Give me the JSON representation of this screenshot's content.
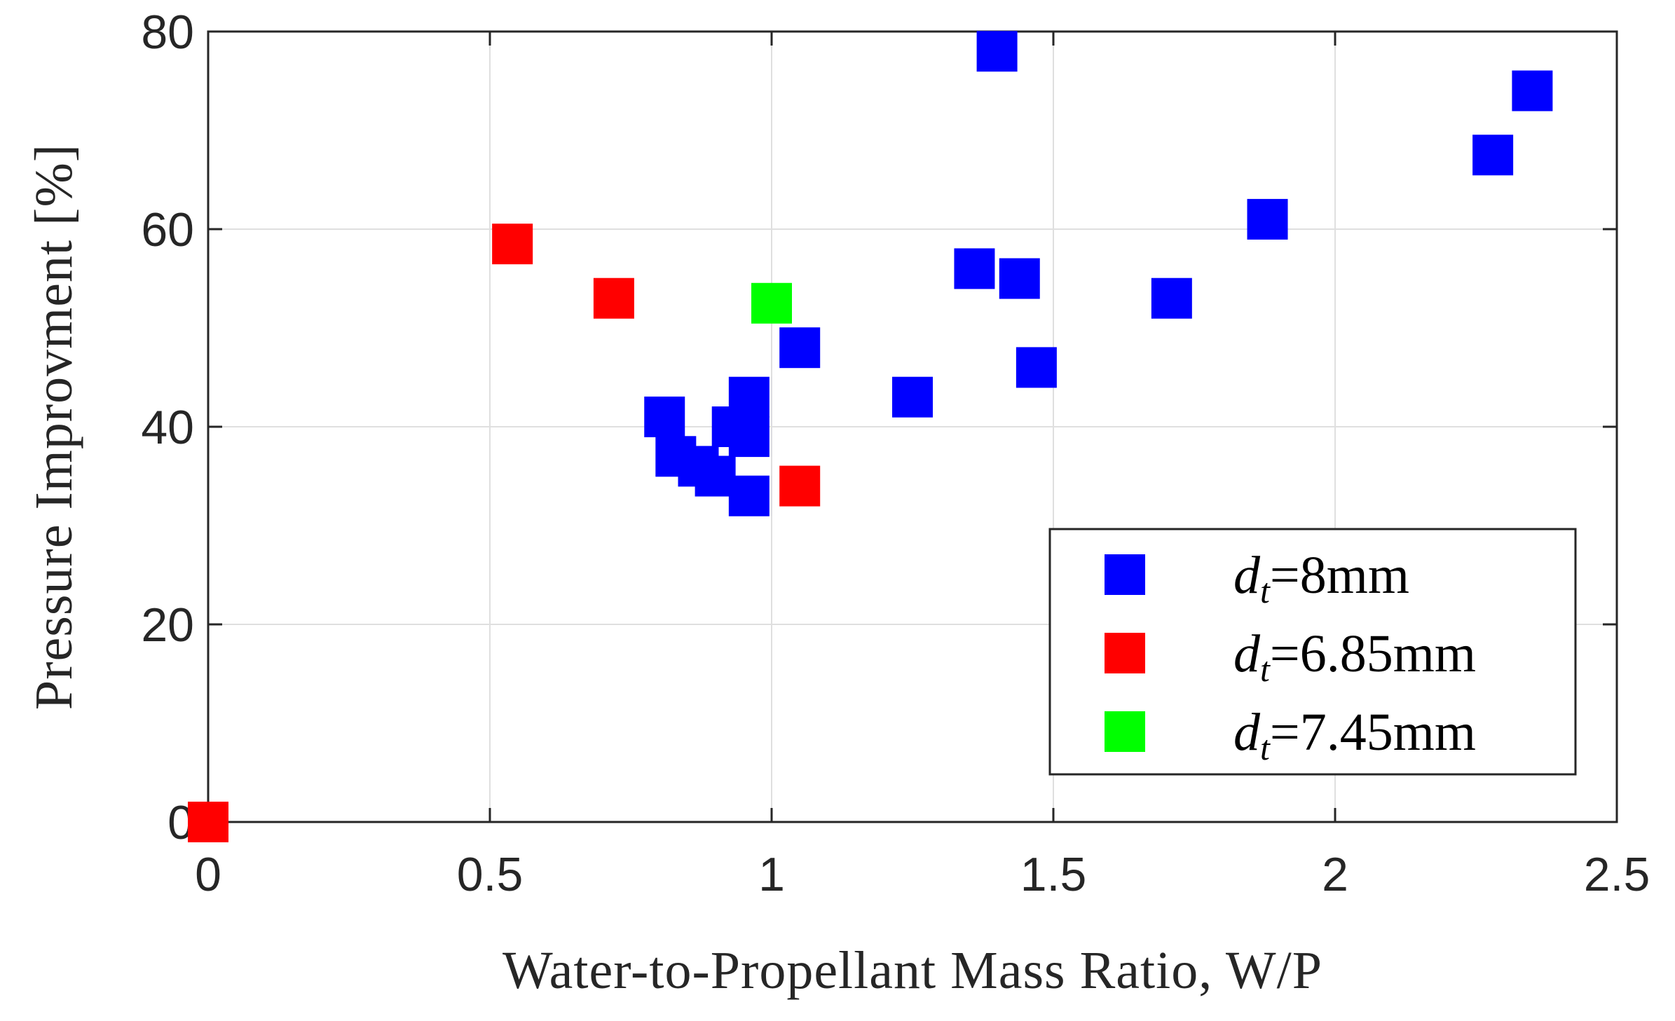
{
  "chart_data": {
    "type": "scatter",
    "title": "",
    "xlabel": "Water-to-Propellant Mass Ratio, W/P",
    "ylabel": "Pressure Improvment [%]",
    "xlim": [
      0,
      2.5
    ],
    "ylim": [
      0,
      80
    ],
    "xticks": [
      0,
      0.5,
      1,
      1.5,
      2,
      2.5
    ],
    "xtick_labels": [
      "0",
      "0.5",
      "1",
      "1.5",
      "2",
      "2.5"
    ],
    "yticks": [
      0,
      20,
      40,
      60,
      80
    ],
    "ytick_labels": [
      "0",
      "20",
      "40",
      "60",
      "80"
    ],
    "grid": true,
    "legend_position": "bottom-right",
    "series": [
      {
        "name": "d_t=8mm",
        "legend_var": "d",
        "legend_sub": "t",
        "legend_value": "=8mm",
        "color": "#0000ff",
        "points": [
          [
            1.4,
            78
          ],
          [
            2.35,
            74
          ],
          [
            2.28,
            67.5
          ],
          [
            1.88,
            61
          ],
          [
            1.36,
            56
          ],
          [
            1.44,
            55
          ],
          [
            1.71,
            53
          ],
          [
            1.05,
            48
          ],
          [
            1.47,
            46
          ],
          [
            1.25,
            43
          ],
          [
            0.96,
            43
          ],
          [
            0.81,
            41
          ],
          [
            0.93,
            40
          ],
          [
            0.96,
            39
          ],
          [
            0.83,
            37
          ],
          [
            0.87,
            36
          ],
          [
            0.9,
            35
          ],
          [
            0.96,
            33
          ]
        ]
      },
      {
        "name": "d_t=6.85mm",
        "legend_var": "d",
        "legend_sub": "t",
        "legend_value": "=6.85mm",
        "color": "#ff0000",
        "points": [
          [
            0.54,
            58.5
          ],
          [
            0.72,
            53
          ],
          [
            1.05,
            34
          ],
          [
            0.0,
            0
          ]
        ]
      },
      {
        "name": "d_t=7.45mm",
        "legend_var": "d",
        "legend_sub": "t",
        "legend_value": "=7.45mm",
        "color": "#00ff00",
        "points": [
          [
            1.0,
            52.5
          ]
        ]
      }
    ]
  }
}
